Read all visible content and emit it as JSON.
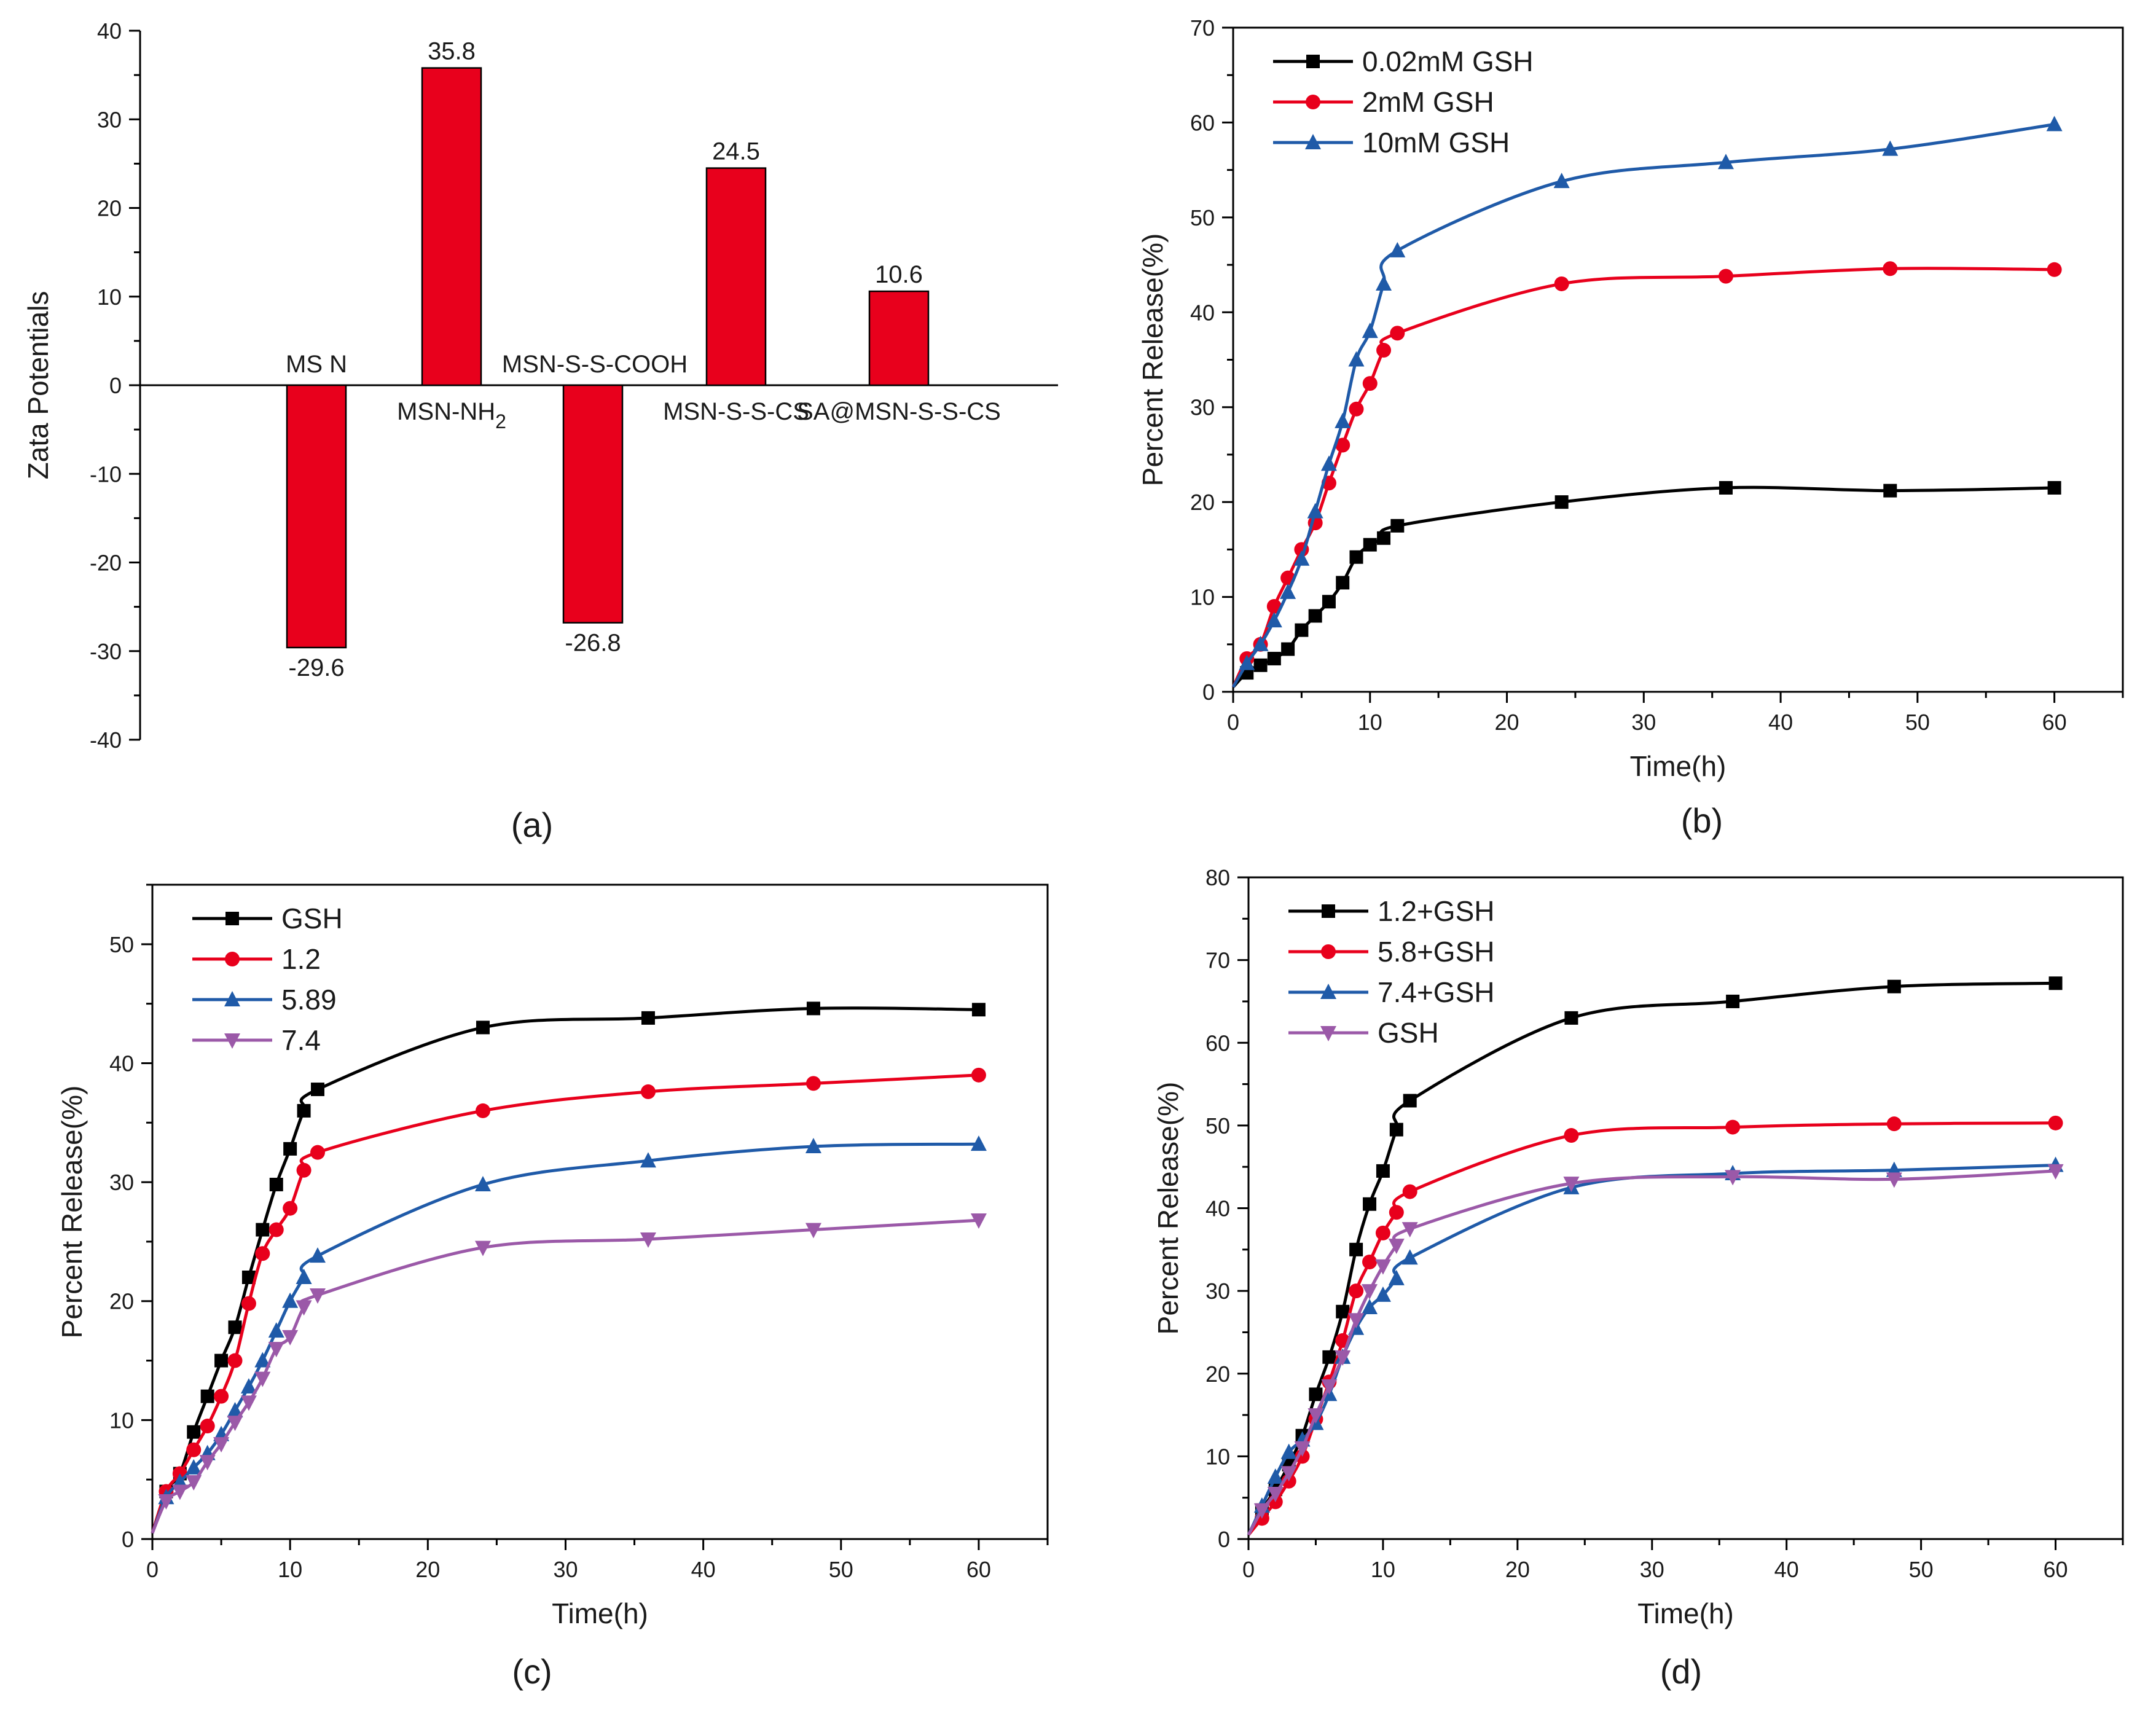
{
  "chart_data": [
    {
      "id": "a",
      "panel_label": "(a)",
      "type": "bar",
      "ylabel": "Zata Potentials",
      "xlabel": "",
      "ylim": [
        -40,
        40
      ],
      "yticks": [
        "-40",
        "-30",
        "-20",
        "-10",
        "0",
        "10",
        "20",
        "30",
        "40"
      ],
      "categories": [
        {
          "text": "MS N",
          "sub": ""
        },
        {
          "text": "MSN-NH",
          "sub": "2"
        },
        {
          "text": "MSN-S-S-COOH",
          "sub": ""
        },
        {
          "text": "MSN-S-S-CS",
          "sub": ""
        },
        {
          "text": "SA@MSN-S-S-CS",
          "sub": ""
        }
      ],
      "values": [
        -29.6,
        35.8,
        -26.8,
        24.5,
        10.6
      ],
      "value_labels": [
        "-29.6",
        "35.8",
        "-26.8",
        "24.5",
        "10.6"
      ],
      "bar_color": "#e8001c"
    },
    {
      "id": "b",
      "panel_label": "(b)",
      "type": "line",
      "xlabel": "Time(h)",
      "ylabel": "Percent Release(%)",
      "xlim": [
        0,
        65
      ],
      "ylim": [
        0,
        70
      ],
      "xticks": [
        "0",
        "10",
        "20",
        "30",
        "40",
        "50",
        "60"
      ],
      "yticks": [
        "0",
        "10",
        "20",
        "30",
        "40",
        "50",
        "60",
        "70"
      ],
      "legend_position": "top-left",
      "series": [
        {
          "name": "0.02mM GSH",
          "color": "#000000",
          "marker": "square",
          "x": [
            0,
            1,
            2,
            3,
            4,
            5,
            6,
            7,
            8,
            9,
            10,
            11,
            12,
            24,
            36,
            48,
            60
          ],
          "y": [
            0.5,
            2,
            2.8,
            3.5,
            4.5,
            6.5,
            8,
            9.5,
            11.5,
            14.2,
            15.5,
            16.2,
            17.5,
            20,
            21.5,
            21.2,
            21.5
          ]
        },
        {
          "name": "2mM GSH",
          "color": "#e8001c",
          "marker": "circle",
          "x": [
            0,
            1,
            2,
            3,
            4,
            5,
            6,
            7,
            8,
            9,
            10,
            11,
            12,
            24,
            36,
            48,
            60
          ],
          "y": [
            0.5,
            3.5,
            5,
            9,
            12,
            15,
            17.8,
            22,
            26,
            29.8,
            32.5,
            36,
            37.8,
            43,
            43.8,
            44.6,
            44.5
          ]
        },
        {
          "name": "10mM GSH",
          "color": "#1f5aa8",
          "marker": "triangle",
          "x": [
            0,
            1,
            2,
            3,
            4,
            5,
            6,
            7,
            8,
            9,
            10,
            11,
            12,
            24,
            36,
            48,
            60
          ],
          "y": [
            0.5,
            3,
            5,
            7.5,
            10.5,
            14,
            19,
            24,
            28.5,
            35,
            38,
            43,
            46.5,
            53.8,
            55.8,
            57.2,
            59.8
          ]
        }
      ]
    },
    {
      "id": "c",
      "panel_label": "(c)",
      "type": "line",
      "xlabel": "Time(h)",
      "ylabel": "Percent Release(%)",
      "xlim": [
        0,
        65
      ],
      "ylim": [
        0,
        55
      ],
      "xticks": [
        "0",
        "10",
        "20",
        "30",
        "40",
        "50",
        "60"
      ],
      "yticks": [
        "0",
        "10",
        "20",
        "30",
        "40",
        "50"
      ],
      "legend_position": "top-left",
      "series": [
        {
          "name": "GSH",
          "color": "#000000",
          "marker": "square",
          "x": [
            0,
            1,
            2,
            3,
            4,
            5,
            6,
            7,
            8,
            9,
            10,
            11,
            12,
            24,
            36,
            48,
            60
          ],
          "y": [
            0.5,
            4,
            5.5,
            9,
            12,
            15,
            17.8,
            22,
            26,
            29.8,
            32.8,
            36,
            37.8,
            43,
            43.8,
            44.6,
            44.5
          ]
        },
        {
          "name": "1.2",
          "color": "#e8001c",
          "marker": "circle",
          "x": [
            0,
            1,
            2,
            3,
            4,
            5,
            6,
            7,
            8,
            9,
            10,
            11,
            12,
            24,
            36,
            48,
            60
          ],
          "y": [
            0.5,
            4,
            5.5,
            7.5,
            9.5,
            12,
            15,
            19.8,
            24,
            26,
            27.8,
            31,
            32.5,
            36,
            37.6,
            38.3,
            39
          ]
        },
        {
          "name": "5.89",
          "color": "#1f5aa8",
          "marker": "triangle",
          "x": [
            0,
            1,
            2,
            3,
            4,
            5,
            6,
            7,
            8,
            9,
            10,
            11,
            12,
            24,
            36,
            48,
            60
          ],
          "y": [
            0.5,
            3.5,
            4.8,
            6,
            7.2,
            8.8,
            10.8,
            12.8,
            15,
            17.5,
            20,
            22,
            23.8,
            29.8,
            31.8,
            33,
            33.2
          ]
        },
        {
          "name": "7.4",
          "color": "#9b59a8",
          "marker": "triangle-down",
          "x": [
            0,
            1,
            2,
            3,
            4,
            5,
            6,
            7,
            8,
            9,
            10,
            11,
            12,
            24,
            36,
            48,
            60
          ],
          "y": [
            0.5,
            3.2,
            4,
            4.8,
            6.5,
            8,
            9.8,
            11.5,
            13.5,
            16,
            17,
            19.5,
            20.5,
            24.5,
            25.2,
            26,
            26.8
          ]
        }
      ]
    },
    {
      "id": "d",
      "panel_label": "(d)",
      "type": "line",
      "xlabel": "Time(h)",
      "ylabel": "Percent Release(%)",
      "xlim": [
        0,
        65
      ],
      "ylim": [
        0,
        80
      ],
      "xticks": [
        "0",
        "10",
        "20",
        "30",
        "40",
        "50",
        "60"
      ],
      "yticks": [
        "0",
        "10",
        "20",
        "30",
        "40",
        "50",
        "60",
        "70",
        "80"
      ],
      "legend_position": "top-left",
      "series": [
        {
          "name": "1.2+GSH",
          "color": "#000000",
          "marker": "square",
          "x": [
            0,
            1,
            2,
            3,
            4,
            5,
            6,
            7,
            8,
            9,
            10,
            11,
            12,
            24,
            36,
            48,
            60
          ],
          "y": [
            0.5,
            3.5,
            6,
            9,
            12.5,
            17.5,
            22,
            27.5,
            35,
            40.5,
            44.5,
            49.5,
            53,
            63,
            65,
            66.8,
            67.2
          ]
        },
        {
          "name": "5.8+GSH",
          "color": "#e8001c",
          "marker": "circle",
          "x": [
            0,
            1,
            2,
            3,
            4,
            5,
            6,
            7,
            8,
            9,
            10,
            11,
            12,
            24,
            36,
            48,
            60
          ],
          "y": [
            0.5,
            2.5,
            4.5,
            7,
            10,
            14.5,
            19,
            24,
            30,
            33.5,
            37,
            39.5,
            42,
            48.8,
            49.8,
            50.2,
            50.3
          ]
        },
        {
          "name": "7.4+GSH",
          "color": "#1f5aa8",
          "marker": "triangle",
          "x": [
            0,
            1,
            2,
            3,
            4,
            5,
            6,
            7,
            8,
            9,
            10,
            11,
            12,
            24,
            36,
            48,
            60
          ],
          "y": [
            0.5,
            4,
            7.5,
            10.5,
            12,
            14,
            17.5,
            22,
            25.5,
            28,
            29.5,
            31.5,
            34,
            42.5,
            44.2,
            44.6,
            45.2
          ]
        },
        {
          "name": "GSH",
          "color": "#9b59a8",
          "marker": "triangle-down",
          "x": [
            0,
            1,
            2,
            3,
            4,
            5,
            6,
            7,
            8,
            9,
            10,
            11,
            12,
            24,
            36,
            48,
            60
          ],
          "y": [
            0.5,
            3.5,
            5.5,
            8,
            11,
            15,
            18.5,
            22,
            26.5,
            30,
            33,
            35.5,
            37.5,
            43,
            43.8,
            43.5,
            44.5
          ]
        }
      ]
    }
  ]
}
